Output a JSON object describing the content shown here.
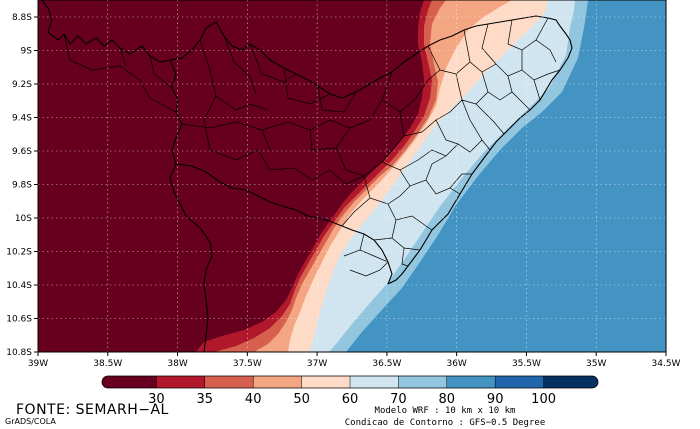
{
  "map": {
    "colors": {
      "c30": "#67001f",
      "c35": "#b2182b",
      "c40": "#d6604d",
      "c50": "#f4a582",
      "c60": "#fddbc7",
      "c70": "#d1e5f0",
      "c80": "#92c5de",
      "c90": "#4393c3",
      "c100": "#2166ac",
      "cmax": "#053061"
    },
    "lon_labels": [
      "39W",
      "38.5W",
      "38W",
      "37.5W",
      "37W",
      "36.5W",
      "36W",
      "35.5W",
      "35W",
      "34.5W"
    ],
    "lat_labels": [
      "8.8S",
      "9S",
      "9.2S",
      "9.4S",
      "9.6S",
      "9.8S",
      "10S",
      "10.2S",
      "10.4S",
      "10.6S",
      "10.8S"
    ]
  },
  "colorbar": {
    "labels": [
      "30",
      "35",
      "40",
      "50",
      "60",
      "70",
      "80",
      "90",
      "100"
    ]
  },
  "footer": {
    "source": "FONTE: SEMARH−AL",
    "grads": "GrADS/COLA",
    "model": "Modelo WRF : 10 km x 10 km",
    "boundary": "Condicao de Contorno : GFS−0.5 Degree"
  }
}
